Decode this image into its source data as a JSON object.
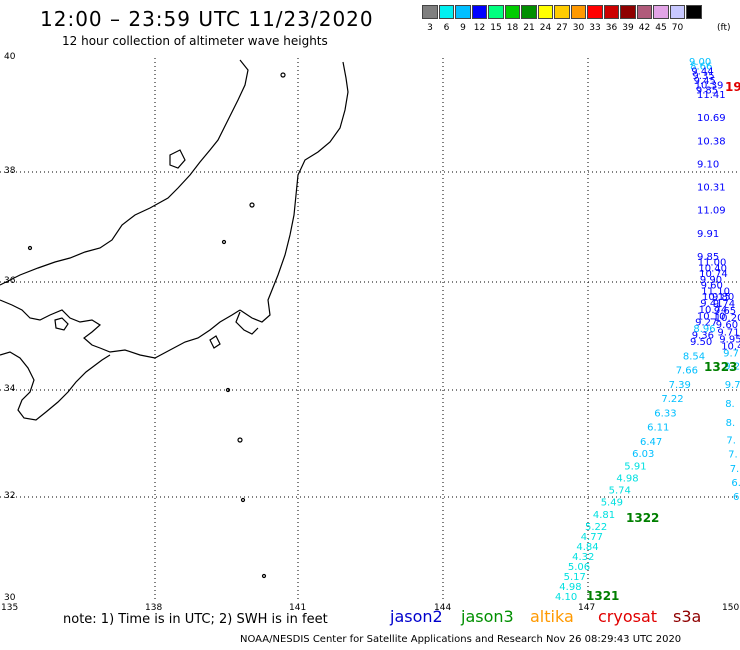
{
  "header": {
    "title": "12:00 – 23:59 UTC 11/23/2020",
    "subtitle": "12 hour collection of altimeter wave heights"
  },
  "colorbar": {
    "unit": "(ft)",
    "swatches": [
      {
        "label": "3",
        "color": "#7f7f7f"
      },
      {
        "label": "6",
        "color": "#00f0f0"
      },
      {
        "label": "9",
        "color": "#00bfff"
      },
      {
        "label": "12",
        "color": "#0000ff"
      },
      {
        "label": "15",
        "color": "#00ff7f"
      },
      {
        "label": "18",
        "color": "#00cc00"
      },
      {
        "label": "21",
        "color": "#008f00"
      },
      {
        "label": "24",
        "color": "#ffff00"
      },
      {
        "label": "27",
        "color": "#ffcc00"
      },
      {
        "label": "30",
        "color": "#ff9900"
      },
      {
        "label": "33",
        "color": "#ff0000"
      },
      {
        "label": "36",
        "color": "#cc0000"
      },
      {
        "label": "39",
        "color": "#8f0000"
      },
      {
        "label": "42",
        "color": "#b05a7a"
      },
      {
        "label": "45",
        "color": "#e2a4e6"
      },
      {
        "label": "70",
        "color": "#c8c8ff"
      },
      {
        "label": "",
        "color": "#000000"
      }
    ]
  },
  "axes": {
    "lat_labels": [
      "40",
      "38",
      "36",
      "34",
      "32",
      "30"
    ],
    "lon_labels": [
      "135",
      "138",
      "141",
      "144",
      "147",
      "150"
    ]
  },
  "tracks": {
    "main": [
      {
        "v": "9.00",
        "c": "#00bfff"
      },
      {
        "v": "8.66",
        "c": "#00bfff"
      },
      {
        "v": "9.44",
        "c": "#0000ff"
      },
      {
        "v": "9.35",
        "c": "#0000ff"
      },
      {
        "v": "9.45",
        "c": "#0000ff"
      },
      {
        "v": "10.39",
        "c": "#0000ff"
      },
      {
        "v": "9.85",
        "c": "#0000ff"
      },
      {
        "v": "11.41",
        "c": "#0000ff"
      },
      {
        "v": "10.69",
        "c": "#0000ff"
      },
      {
        "v": "10.38",
        "c": "#0000ff"
      },
      {
        "v": "9.10",
        "c": "#0000ff"
      },
      {
        "v": "10.31",
        "c": "#0000ff"
      },
      {
        "v": "11.09",
        "c": "#0000ff"
      },
      {
        "v": "9.91",
        "c": "#0000ff"
      },
      {
        "v": "9.85",
        "c": "#0000ff"
      },
      {
        "v": "11.00",
        "c": "#0000ff"
      },
      {
        "v": "10.40",
        "c": "#0000ff"
      },
      {
        "v": "10.74",
        "c": "#0000ff"
      },
      {
        "v": "9.90",
        "c": "#0000ff"
      },
      {
        "v": "9.60",
        "c": "#0000ff"
      },
      {
        "v": "11.10",
        "c": "#0000ff"
      },
      {
        "v": "10.15",
        "c": "#0000ff"
      },
      {
        "v": "9.41",
        "c": "#0000ff"
      },
      {
        "v": "10.74",
        "c": "#0000ff"
      },
      {
        "v": "10.10",
        "c": "#0000ff"
      },
      {
        "v": "9.27",
        "c": "#0000ff"
      },
      {
        "v": "8.96",
        "c": "#00bfff"
      },
      {
        "v": "9.36",
        "c": "#0000ff"
      },
      {
        "v": "9.50",
        "c": "#0000ff"
      },
      {
        "v": "8.54",
        "c": "#00bfff"
      },
      {
        "v": "7.66",
        "c": "#00bfff"
      },
      {
        "v": "7.39",
        "c": "#00bfff"
      },
      {
        "v": "7.22",
        "c": "#00bfff"
      },
      {
        "v": "6.33",
        "c": "#00bfff"
      },
      {
        "v": "6.11",
        "c": "#00bfff"
      },
      {
        "v": "6.47",
        "c": "#00bfff"
      },
      {
        "v": "6.03",
        "c": "#00bfff"
      },
      {
        "v": "5.91",
        "c": "#00e0e0"
      },
      {
        "v": "4.98",
        "c": "#00e0e0"
      },
      {
        "v": "5.74",
        "c": "#00e0e0"
      },
      {
        "v": "5.49",
        "c": "#00e0e0"
      },
      {
        "v": "4.81",
        "c": "#00e0e0"
      },
      {
        "v": "5.22",
        "c": "#00e0e0"
      },
      {
        "v": "4.77",
        "c": "#00e0e0"
      },
      {
        "v": "4.84",
        "c": "#00e0e0"
      },
      {
        "v": "4.32",
        "c": "#00e0e0"
      },
      {
        "v": "5.06",
        "c": "#00e0e0"
      },
      {
        "v": "5.17",
        "c": "#00e0e0"
      },
      {
        "v": "4.98",
        "c": "#00e0e0"
      },
      {
        "v": "4.10",
        "c": "#00e0e0"
      }
    ],
    "right": [
      {
        "v": "9.80",
        "c": "#0000ff"
      },
      {
        "v": "9.74",
        "c": "#0000ff"
      },
      {
        "v": "9.65",
        "c": "#0000ff"
      },
      {
        "v": "10.20",
        "c": "#0000ff"
      },
      {
        "v": "9.60",
        "c": "#0000ff"
      },
      {
        "v": "9.71",
        "c": "#0000ff"
      },
      {
        "v": "9.95",
        "c": "#0000ff"
      },
      {
        "v": "10.4",
        "c": "#0000ff"
      },
      {
        "v": "9.7",
        "c": "#00bfff"
      },
      {
        "v": "9.2",
        "c": "#00bfff"
      },
      {
        "v": "9.7",
        "c": "#00bfff"
      },
      {
        "v": "8.",
        "c": "#00bfff"
      },
      {
        "v": "8.",
        "c": "#00bfff"
      },
      {
        "v": "7.",
        "c": "#00bfff"
      },
      {
        "v": "7.",
        "c": "#00bfff"
      },
      {
        "v": "7.",
        "c": "#00bfff"
      },
      {
        "v": "6.",
        "c": "#00bfff"
      },
      {
        "v": "6",
        "c": "#00bfff"
      }
    ]
  },
  "pass_labels": [
    {
      "text": "1321",
      "color": "#007f00"
    },
    {
      "text": "1322",
      "color": "#007f00"
    },
    {
      "text": "1323",
      "color": "#007f00"
    },
    {
      "text": "19",
      "color": "#e00000"
    }
  ],
  "footer": {
    "note": "note:  1) Time is in UTC;  2) SWH is in feet",
    "satellites": [
      {
        "name": "jason2",
        "color": "#0000cc"
      },
      {
        "name": "jason3",
        "color": "#008f00"
      },
      {
        "name": "altika",
        "color": "#ff9900"
      },
      {
        "name": "cryosat",
        "color": "#e00000"
      },
      {
        "name": "s3a",
        "color": "#8f0000"
      }
    ],
    "credit": "NOAA/NESDIS Center for Satellite Applications and Research     Nov 26 08:29:43 UTC 2020"
  }
}
